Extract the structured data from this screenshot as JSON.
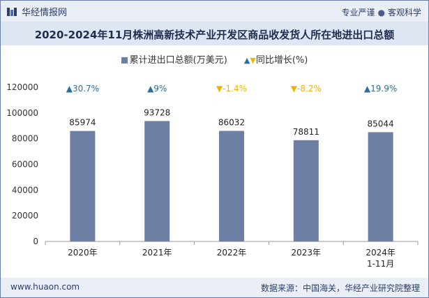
{
  "header": {
    "brand": "华经情报网",
    "tag_left": "专业严谨",
    "tag_sep": "●",
    "tag_right": "客观科学"
  },
  "chart_title": "2020-2024年11月株洲高新技术产业开发区商品收发货人所在地进出口总额",
  "legend": {
    "bar_label": "累计进出口总额(万美元)",
    "yoy_label": "同比增长(%)"
  },
  "footer": {
    "site": "www.huaon.com",
    "source": "数据来源：中国海关，华经产业研究院整理"
  },
  "colors": {
    "bar": "#6e7fa6",
    "up": "#2c6e99",
    "down": "#f0b400"
  },
  "chart_data": {
    "type": "bar",
    "categories": [
      "2020年",
      "2021年",
      "2022年",
      "2023年",
      "2024年 1-11月"
    ],
    "series": [
      {
        "name": "累计进出口总额(万美元)",
        "values": [
          85974,
          93728,
          86032,
          78811,
          85044
        ]
      }
    ],
    "yoy": [
      {
        "value": 30.7,
        "label": "30.7%"
      },
      {
        "value": 9,
        "label": "9%"
      },
      {
        "value": -1.4,
        "label": "-1.4%"
      },
      {
        "value": -8.2,
        "label": "-8.2%"
      },
      {
        "value": 19.9,
        "label": "19.9%"
      }
    ],
    "ylim": [
      0,
      120000
    ],
    "yticks": [
      0,
      20000,
      40000,
      60000,
      80000,
      100000,
      120000
    ],
    "grid": false,
    "legend_position": "top-center"
  }
}
